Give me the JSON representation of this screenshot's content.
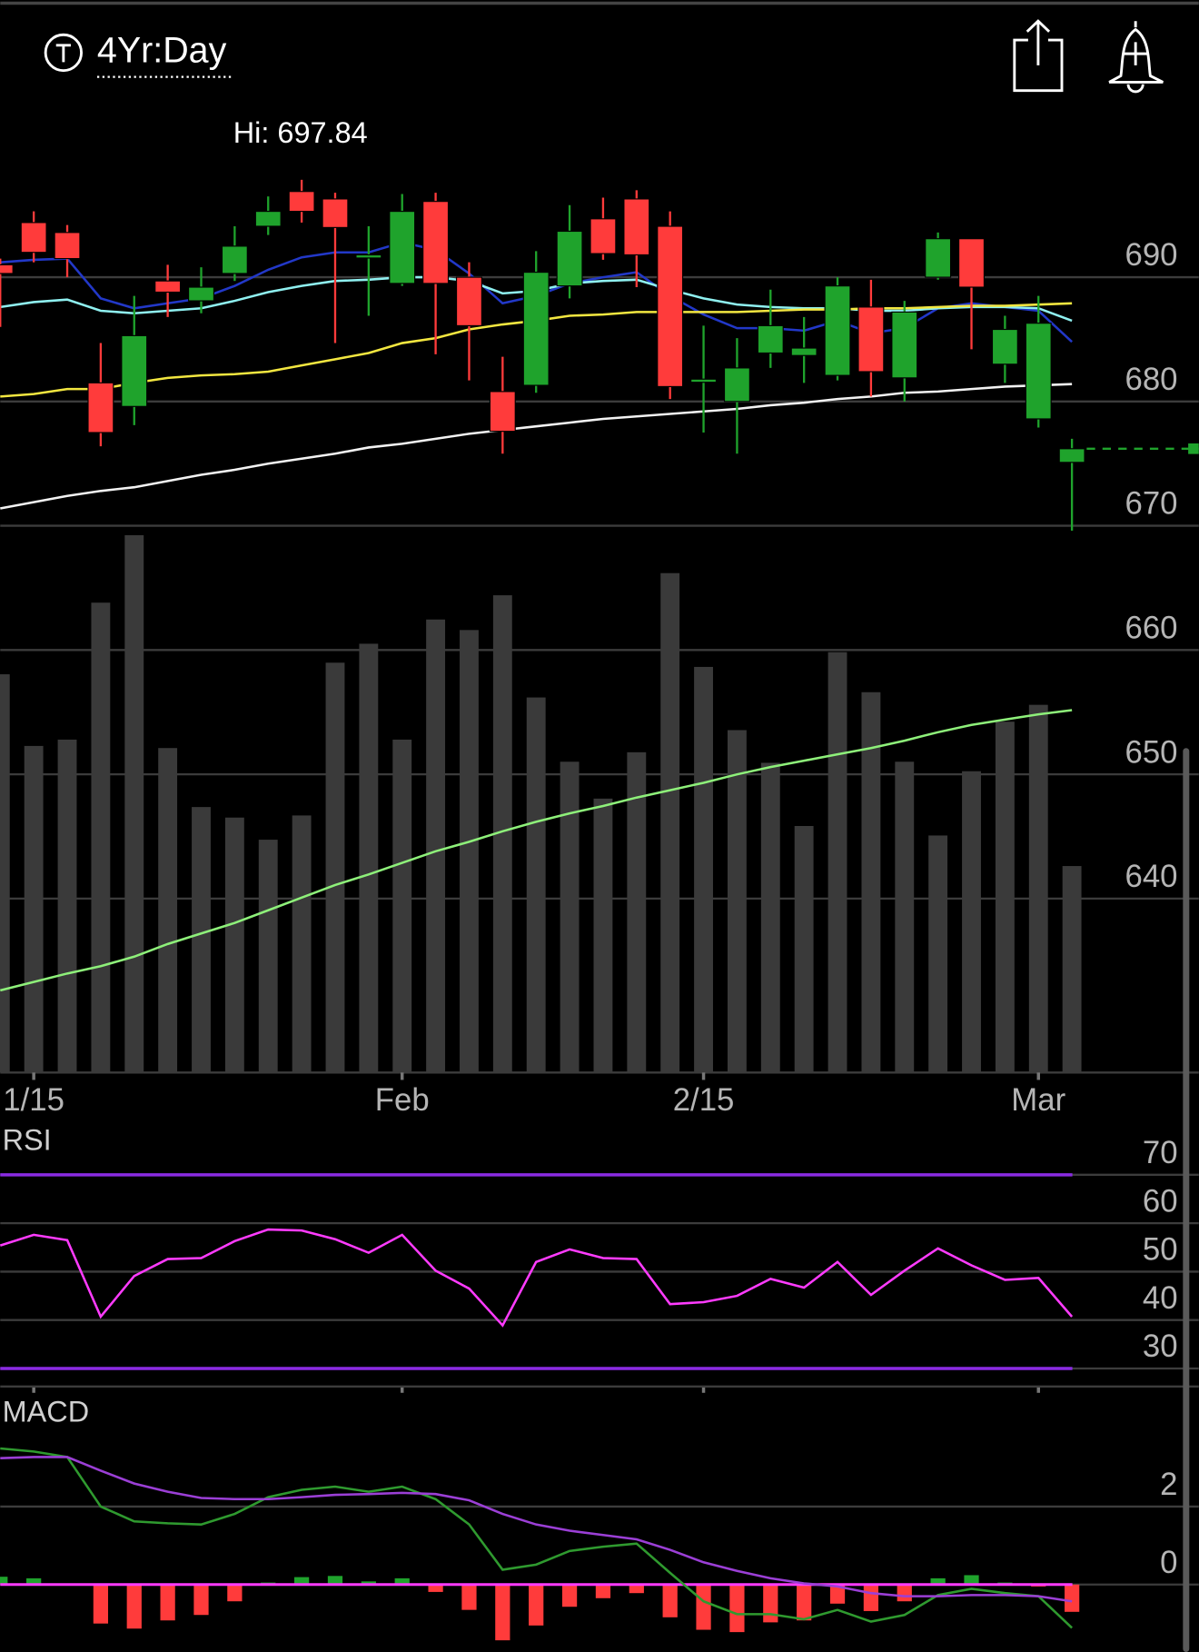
{
  "header": {
    "title": "4Yr:Day"
  },
  "chart_data": [
    {
      "type": "candlestick",
      "annotation": "Hi: 697.84",
      "categories": [
        null,
        "1/15",
        null,
        null,
        null,
        null,
        null,
        null,
        null,
        null,
        null,
        null,
        "Feb",
        null,
        null,
        null,
        null,
        null,
        null,
        null,
        null,
        "2/15",
        null,
        null,
        null,
        null,
        null,
        null,
        null,
        null,
        null,
        "Mar",
        null
      ],
      "open": [
        691.0,
        694.4,
        693.6,
        681.5,
        679.6,
        689.7,
        688.1,
        690.3,
        694.1,
        696.9,
        696.3,
        691.6,
        689.5,
        696.1,
        690.0,
        680.8,
        681.3,
        689.3,
        694.7,
        696.3,
        694.1,
        681.6,
        680.0,
        683.9,
        683.7,
        682.1,
        687.6,
        681.9,
        690.0,
        693.1,
        683.0,
        678.6,
        675.1
      ],
      "high": [
        691.5,
        695.3,
        694.2,
        684.7,
        688.5,
        691.0,
        690.8,
        694.1,
        696.5,
        697.84,
        696.8,
        694.1,
        696.7,
        696.8,
        691.2,
        683.6,
        692.1,
        695.8,
        696.4,
        697.0,
        695.3,
        686.1,
        685.1,
        689.0,
        686.8,
        690.0,
        689.8,
        688.1,
        693.6,
        693.1,
        686.9,
        688.5,
        677.0
      ],
      "low": [
        686.0,
        691.2,
        690.0,
        676.4,
        678.1,
        686.8,
        687.1,
        689.7,
        693.4,
        694.4,
        684.7,
        686.9,
        689.3,
        683.8,
        681.7,
        675.8,
        680.7,
        688.3,
        691.4,
        689.2,
        680.2,
        677.5,
        675.8,
        682.7,
        681.5,
        681.7,
        680.4,
        680.0,
        689.8,
        684.2,
        681.5,
        677.9,
        669.6
      ],
      "close": [
        690.3,
        692.0,
        691.5,
        677.5,
        685.3,
        688.8,
        689.2,
        692.5,
        695.3,
        695.3,
        694.0,
        691.8,
        695.3,
        689.5,
        686.1,
        677.6,
        690.4,
        693.7,
        691.9,
        691.8,
        681.2,
        681.8,
        682.7,
        686.1,
        684.3,
        689.3,
        682.4,
        687.2,
        693.1,
        689.2,
        685.8,
        686.3,
        676.2
      ],
      "up_color": "#1fa32c",
      "down_color": "#ff3b3b",
      "last_price_color": "#1fa32c",
      "ylim": [
        626,
        704
      ],
      "yticks": [
        640,
        650,
        660,
        670,
        680,
        690
      ],
      "grid": true,
      "series": [
        {
          "color": "#2238c8",
          "values": [
            691.2,
            691.4,
            691.5,
            688.3,
            687.5,
            687.9,
            688.3,
            689.3,
            690.6,
            691.6,
            692.0,
            692.0,
            692.8,
            692.2,
            690.3,
            687.9,
            688.5,
            689.5,
            690.0,
            690.4,
            688.5,
            687.0,
            685.9,
            685.9,
            685.7,
            686.5,
            685.5,
            685.9,
            687.5,
            687.9,
            687.6,
            687.3,
            684.8
          ]
        },
        {
          "color": "#8ff0f0",
          "values": [
            687.6,
            688.0,
            688.2,
            687.3,
            687.1,
            687.3,
            687.5,
            688.1,
            688.8,
            689.3,
            689.7,
            689.8,
            690.0,
            690.0,
            689.7,
            688.7,
            688.9,
            689.5,
            689.7,
            689.8,
            689.0,
            688.3,
            687.8,
            687.6,
            687.5,
            687.5,
            687.3,
            687.3,
            687.5,
            687.6,
            687.6,
            687.5,
            686.5
          ]
        },
        {
          "color": "#f2e640",
          "values": [
            680.4,
            680.6,
            681.0,
            681.0,
            681.5,
            681.9,
            682.1,
            682.2,
            682.4,
            682.9,
            683.4,
            683.9,
            684.7,
            685.1,
            685.8,
            686.2,
            686.5,
            686.9,
            687.0,
            687.2,
            687.2,
            687.2,
            687.2,
            687.3,
            687.4,
            687.4,
            687.5,
            687.5,
            687.6,
            687.7,
            687.7,
            687.8,
            687.9
          ]
        },
        {
          "color": "#f2f2f2",
          "values": [
            671.4,
            671.9,
            672.4,
            672.8,
            673.1,
            673.6,
            674.1,
            674.5,
            675.0,
            675.4,
            675.8,
            676.3,
            676.6,
            677.0,
            677.4,
            677.7,
            678.0,
            678.3,
            678.6,
            678.8,
            679.0,
            679.2,
            679.4,
            679.7,
            679.9,
            680.2,
            680.4,
            680.7,
            680.8,
            681.0,
            681.2,
            681.3,
            681.4
          ]
        }
      ],
      "volume": {
        "color": "#3a3a3a",
        "ylim": [
          0,
          520
        ],
        "values": [
          378,
          310,
          316,
          446,
          510,
          308,
          252,
          242,
          221,
          244,
          389,
          407,
          316,
          430,
          420,
          453,
          356,
          295,
          260,
          304,
          474,
          385,
          325,
          294,
          234,
          399,
          361,
          295,
          225,
          286,
          333,
          349,
          196
        ],
        "ma": {
          "color": "#8ef07a",
          "values": [
            78,
            86,
            94,
            101,
            110,
            122,
            132,
            142,
            154,
            166,
            178,
            188,
            199,
            210,
            219,
            229,
            238,
            246,
            253,
            261,
            268,
            275,
            283,
            290,
            296,
            302,
            308,
            315,
            323,
            330,
            335,
            340,
            344
          ]
        }
      }
    },
    {
      "type": "line",
      "title": "RSI",
      "ylim": [
        26.5,
        79.8
      ],
      "yticks": [
        30,
        40,
        50,
        60,
        70
      ],
      "grid": true,
      "reference_lines": [
        70,
        30
      ],
      "reference_color": "#8a2be2",
      "series": [
        {
          "color": "#ff3bff",
          "values": [
            55.4,
            57.6,
            56.5,
            40.7,
            49.1,
            52.6,
            52.8,
            56.3,
            58.7,
            58.5,
            56.7,
            53.9,
            57.6,
            50.2,
            46.5,
            38.9,
            52.0,
            54.6,
            52.8,
            52.6,
            43.3,
            43.7,
            45.0,
            48.5,
            46.7,
            52.0,
            45.2,
            50.2,
            54.8,
            51.3,
            48.3,
            48.7,
            40.7
          ]
        }
      ]
    },
    {
      "type": "macd",
      "title": "MACD",
      "ylim": [
        -1.73,
        4.97
      ],
      "yticks": [
        0,
        2
      ],
      "grid": true,
      "zero_line_color": "#ff3bff",
      "series": [
        {
          "color": "#2f9a2f",
          "values": [
            3.49,
            3.41,
            3.27,
            2.0,
            1.62,
            1.57,
            1.54,
            1.81,
            2.24,
            2.43,
            2.51,
            2.38,
            2.51,
            2.19,
            1.54,
            0.38,
            0.51,
            0.86,
            0.97,
            1.05,
            0.3,
            -0.43,
            -0.76,
            -0.76,
            -0.89,
            -0.65,
            -0.95,
            -0.78,
            -0.27,
            -0.11,
            -0.22,
            -0.3,
            -1.11
          ]
        },
        {
          "color": "#9b3fd6",
          "values": [
            3.24,
            3.27,
            3.27,
            2.92,
            2.59,
            2.38,
            2.22,
            2.19,
            2.19,
            2.24,
            2.3,
            2.32,
            2.35,
            2.32,
            2.16,
            1.81,
            1.54,
            1.38,
            1.27,
            1.16,
            0.89,
            0.57,
            0.35,
            0.16,
            0.03,
            -0.05,
            -0.22,
            -0.3,
            -0.3,
            -0.27,
            -0.27,
            -0.3,
            -0.43
          ]
        }
      ],
      "histogram": {
        "up_color": "#1fa32c",
        "down_color": "#ff3b3b",
        "values": [
          0.2,
          0.16,
          0,
          -1.0,
          -1.13,
          -0.92,
          -0.78,
          -0.43,
          0.05,
          0.19,
          0.22,
          0.08,
          0.16,
          -0.19,
          -0.65,
          -1.43,
          -1.05,
          -0.57,
          -0.35,
          -0.22,
          -0.84,
          -1.16,
          -1.22,
          -0.97,
          -0.92,
          -0.49,
          -0.68,
          -0.43,
          0.16,
          0.24,
          0.05,
          -0.05,
          -0.7
        ]
      }
    }
  ]
}
